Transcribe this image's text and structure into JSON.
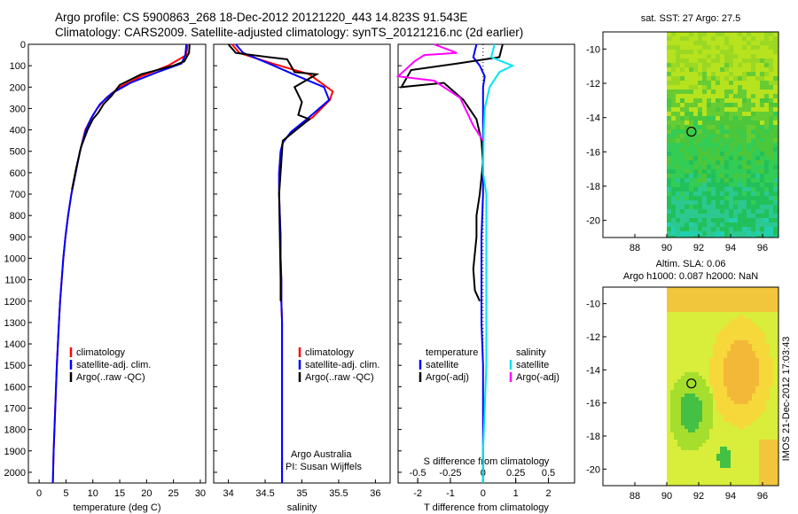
{
  "header": {
    "line1": "Argo profile: CS 5900863_268 18-Dec-2012 20121220_443 14.823S 91.543E",
    "line2": "Climatology: CARS2009. Satellite-adjusted climatology: synTS_20121216.nc (2d earlier)"
  },
  "side_label": "IMOS 21-Dec-2012 17:03:43",
  "colors": {
    "climatology": "#ff0000",
    "satellite": "#0000ff",
    "argo": "#000000",
    "sat_salinity": "#00e5ee",
    "argo_salinity": "#ff00ff"
  },
  "chart_data": [
    {
      "type": "line",
      "title": "",
      "xlabel": "temperature (deg C)",
      "ylabel": "",
      "xlim": [
        -2,
        31
      ],
      "ylim": [
        2050,
        0
      ],
      "xticks": [
        0,
        5,
        10,
        15,
        20,
        25,
        30
      ],
      "yticks": [
        0,
        100,
        200,
        300,
        400,
        500,
        600,
        700,
        800,
        900,
        1000,
        1100,
        1200,
        1300,
        1400,
        1500,
        1600,
        1700,
        1800,
        1900,
        2000
      ],
      "legend": [
        "climatology",
        "satellite-adj. clim.",
        "Argo(..raw -QC)"
      ],
      "series": [
        {
          "name": "climatology",
          "color": "#ff0000",
          "points": [
            [
              27.6,
              0
            ],
            [
              27.4,
              50
            ],
            [
              24,
              100
            ],
            [
              19,
              150
            ],
            [
              15,
              200
            ],
            [
              12.5,
              250
            ],
            [
              10.8,
              300
            ],
            [
              9.6,
              350
            ],
            [
              8.6,
              400
            ],
            [
              7.6,
              500
            ],
            [
              6.8,
              600
            ],
            [
              6,
              700
            ],
            [
              5.4,
              800
            ],
            [
              4.9,
              900
            ],
            [
              4.5,
              1000
            ],
            [
              4.2,
              1100
            ],
            [
              3.9,
              1200
            ],
            [
              3.7,
              1300
            ],
            [
              3.5,
              1400
            ],
            [
              3.3,
              1500
            ],
            [
              3.15,
              1600
            ],
            [
              3,
              1700
            ],
            [
              2.85,
              1800
            ],
            [
              2.7,
              1900
            ],
            [
              2.6,
              2000
            ],
            [
              2.55,
              2050
            ]
          ]
        },
        {
          "name": "satellite-adj. clim.",
          "color": "#0000ff",
          "points": [
            [
              27.4,
              0
            ],
            [
              27.2,
              50
            ],
            [
              26.5,
              90
            ],
            [
              22,
              130
            ],
            [
              17,
              180
            ],
            [
              13.5,
              230
            ],
            [
              11.3,
              280
            ],
            [
              9.8,
              340
            ],
            [
              8.7,
              400
            ],
            [
              7.6,
              500
            ],
            [
              6.8,
              600
            ],
            [
              6,
              700
            ],
            [
              5.4,
              800
            ],
            [
              4.9,
              900
            ],
            [
              4.5,
              1000
            ],
            [
              4.2,
              1100
            ],
            [
              3.9,
              1200
            ],
            [
              3.7,
              1300
            ],
            [
              3.5,
              1400
            ],
            [
              3.3,
              1500
            ],
            [
              3.15,
              1600
            ],
            [
              3,
              1700
            ],
            [
              2.85,
              1800
            ],
            [
              2.7,
              1900
            ],
            [
              2.6,
              2000
            ],
            [
              2.55,
              2050
            ]
          ]
        },
        {
          "name": "Argo(..raw -QC)",
          "color": "#000000",
          "points": [
            [
              28,
              0
            ],
            [
              27.9,
              40
            ],
            [
              27,
              80
            ],
            [
              25,
              100
            ],
            [
              19,
              140
            ],
            [
              15,
              190
            ],
            [
              13.5,
              240
            ],
            [
              12,
              280
            ],
            [
              11,
              320
            ],
            [
              10,
              350
            ],
            [
              9,
              400
            ],
            [
              7.8,
              480
            ],
            [
              6.9,
              580
            ],
            [
              6.1,
              680
            ]
          ]
        }
      ]
    },
    {
      "type": "line",
      "title": "",
      "xlabel": "salinity",
      "ylabel": "",
      "xlim": [
        33.8,
        36.2
      ],
      "ylim": [
        2050,
        0
      ],
      "xticks": [
        34,
        34.5,
        35,
        35.5,
        36
      ],
      "legend": [
        "climatology",
        "satellite-adj. clim.",
        "Argo(..raw -QC)"
      ],
      "notes": [
        "Argo Australia",
        "PI: Susan Wijffels"
      ],
      "series": [
        {
          "name": "climatology",
          "color": "#ff0000",
          "points": [
            [
              34.05,
              0
            ],
            [
              34.15,
              40
            ],
            [
              34.6,
              90
            ],
            [
              35.1,
              140
            ],
            [
              35.42,
              220
            ],
            [
              35.38,
              260
            ],
            [
              35.15,
              340
            ],
            [
              34.9,
              400
            ],
            [
              34.75,
              450
            ],
            [
              34.71,
              500
            ],
            [
              34.69,
              600
            ],
            [
              34.69,
              700
            ],
            [
              34.7,
              800
            ],
            [
              34.71,
              900
            ],
            [
              34.71,
              1000
            ],
            [
              34.72,
              1100
            ],
            [
              34.72,
              1200
            ],
            [
              34.73,
              1300
            ],
            [
              34.73,
              1400
            ],
            [
              34.73,
              1500
            ],
            [
              34.73,
              1600
            ],
            [
              34.73,
              1700
            ],
            [
              34.73,
              1800
            ],
            [
              34.73,
              1900
            ],
            [
              34.73,
              2000
            ],
            [
              34.73,
              2050
            ]
          ]
        },
        {
          "name": "satellite-adj. clim.",
          "color": "#0000ff",
          "points": [
            [
              34.1,
              0
            ],
            [
              34.2,
              40
            ],
            [
              34.55,
              90
            ],
            [
              34.95,
              150
            ],
            [
              35.3,
              200
            ],
            [
              35.37,
              260
            ],
            [
              35.1,
              340
            ],
            [
              34.85,
              410
            ],
            [
              34.74,
              460
            ],
            [
              34.71,
              500
            ],
            [
              34.69,
              600
            ],
            [
              34.69,
              700
            ],
            [
              34.7,
              800
            ],
            [
              34.71,
              900
            ],
            [
              34.71,
              1000
            ],
            [
              34.72,
              1100
            ],
            [
              34.72,
              1200
            ],
            [
              34.73,
              1300
            ],
            [
              34.73,
              1400
            ],
            [
              34.73,
              1500
            ],
            [
              34.73,
              1600
            ],
            [
              34.73,
              1700
            ],
            [
              34.73,
              1800
            ],
            [
              34.73,
              1900
            ],
            [
              34.73,
              2000
            ],
            [
              34.73,
              2050
            ]
          ]
        },
        {
          "name": "Argo(..raw -QC)",
          "color": "#000000",
          "points": [
            [
              34,
              0
            ],
            [
              34.1,
              40
            ],
            [
              34.55,
              60
            ],
            [
              34.8,
              70
            ],
            [
              34.85,
              100
            ],
            [
              34.9,
              130
            ],
            [
              35.2,
              140
            ],
            [
              34.9,
              200
            ],
            [
              35,
              270
            ],
            [
              34.95,
              330
            ],
            [
              35.1,
              350
            ],
            [
              34.85,
              420
            ],
            [
              34.74,
              450
            ],
            [
              34.72,
              550
            ],
            [
              34.69,
              700
            ],
            [
              34.7,
              900
            ],
            [
              34.71,
              1100
            ],
            [
              34.71,
              1200
            ]
          ]
        }
      ]
    },
    {
      "type": "line",
      "title": "",
      "xlabel": "T difference from climatology",
      "xlabel2": "S difference from climatology",
      "xlim": [
        -2.6,
        2.8
      ],
      "ylim": [
        2050,
        0
      ],
      "xticks_T": [
        -2,
        -1,
        0,
        1,
        2
      ],
      "xticks_S": [
        -0.5,
        -0.25,
        0,
        0.25,
        0.5
      ],
      "xtick_labels_S": [
        "-0.5",
        "-0.25",
        "0",
        "0.25",
        "0.5"
      ],
      "legend_headers": [
        "temperature",
        "salinity"
      ],
      "legend": [
        "satellite",
        "Argo(-adj)",
        "satellite",
        "Argo(-adj)"
      ],
      "series": [
        {
          "name": "temperature satellite",
          "color": "#0000ff",
          "points": [
            [
              -0.2,
              0
            ],
            [
              -0.3,
              60
            ],
            [
              -0.1,
              100
            ],
            [
              0.05,
              150
            ],
            [
              0,
              200
            ],
            [
              0,
              300
            ],
            [
              0,
              400
            ],
            [
              0,
              500
            ],
            [
              0,
              700
            ],
            [
              -0.05,
              900
            ],
            [
              -0.05,
              1100
            ],
            [
              -0.05,
              1300
            ],
            [
              0,
              1500
            ],
            [
              0,
              1700
            ],
            [
              0,
              1900
            ],
            [
              0,
              2050
            ]
          ]
        },
        {
          "name": "temperature Argo(-adj)",
          "color": "#000000",
          "points": [
            [
              0.6,
              0
            ],
            [
              0.5,
              60
            ],
            [
              -0.8,
              90
            ],
            [
              -2.2,
              120
            ],
            [
              -2.5,
              200
            ],
            [
              -1.2,
              180
            ],
            [
              -0.6,
              260
            ],
            [
              -0.2,
              350
            ],
            [
              -0.05,
              450
            ],
            [
              0,
              550
            ],
            [
              -0.1,
              700
            ],
            [
              -0.2,
              800
            ],
            [
              -0.2,
              900
            ],
            [
              -0.3,
              1050
            ],
            [
              -0.25,
              1150
            ],
            [
              -0.1,
              1200
            ]
          ]
        },
        {
          "name": "salinity satellite",
          "color": "#00e5ee",
          "points": [
            [
              0.35,
              0
            ],
            [
              0.25,
              60
            ],
            [
              0.9,
              100
            ],
            [
              0.5,
              130
            ],
            [
              0.2,
              200
            ],
            [
              0.05,
              300
            ],
            [
              0.02,
              400
            ],
            [
              0,
              600
            ],
            [
              0.1,
              700
            ],
            [
              0.1,
              900
            ],
            [
              0.1,
              1100
            ],
            [
              0.1,
              1300
            ],
            [
              0.1,
              1500
            ],
            [
              0.05,
              1700
            ],
            [
              0,
              1900
            ],
            [
              0,
              2050
            ]
          ]
        },
        {
          "name": "salinity Argo(-adj)",
          "color": "#ff00ff",
          "points": [
            [
              -1.5,
              0
            ],
            [
              -0.8,
              40
            ],
            [
              -1.8,
              50
            ],
            [
              -2.1,
              80
            ],
            [
              -2.6,
              150
            ],
            [
              -1.5,
              170
            ],
            [
              -0.7,
              250
            ],
            [
              -0.3,
              380
            ],
            [
              0,
              450
            ]
          ]
        }
      ]
    },
    {
      "type": "heatmap",
      "title": "sat. SST: 27 Argo: 27.5",
      "xlim": [
        86,
        97
      ],
      "ylim": [
        -21,
        -9
      ],
      "xticks": [
        88,
        90,
        92,
        94,
        96
      ],
      "yticks": [
        -10,
        -12,
        -14,
        -16,
        -18,
        -20
      ],
      "marker": {
        "lon": 91.543,
        "lat": -14.823
      }
    },
    {
      "type": "heatmap",
      "title": "Altim. SLA: 0.06",
      "subtitle": "Argo h1000: 0.087 h2000: NaN",
      "xlim": [
        86,
        97
      ],
      "ylim": [
        -21,
        -9
      ],
      "xticks": [
        88,
        90,
        92,
        94,
        96
      ],
      "yticks": [
        -10,
        -12,
        -14,
        -16,
        -18,
        -20
      ],
      "marker": {
        "lon": 91.543,
        "lat": -14.823
      }
    }
  ]
}
